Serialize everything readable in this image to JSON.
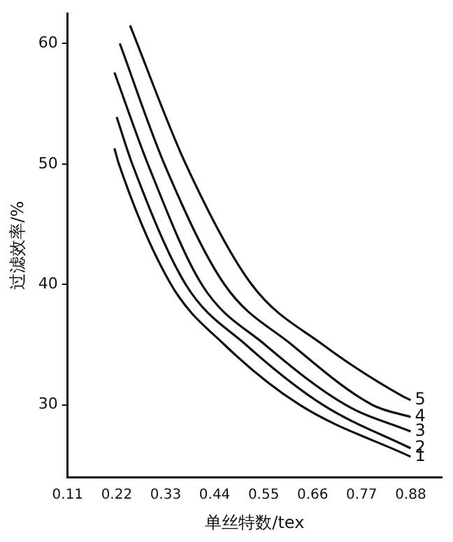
{
  "chart_data": {
    "type": "line",
    "xlabel": "单丝特数/tex",
    "ylabel": "过滤效率/%",
    "xlim": [
      0.11,
      0.95
    ],
    "xticks": [
      0.11,
      0.22,
      0.33,
      0.44,
      0.55,
      0.66,
      0.77,
      0.88
    ],
    "ylim": [
      24,
      62.5
    ],
    "yticks": [
      30,
      40,
      50,
      60
    ],
    "grid": false,
    "legend": false,
    "marker": "none",
    "line_style": "solid",
    "series": [
      {
        "name": "1",
        "color": "#111111",
        "x": [
          0.215,
          0.225,
          0.342,
          0.462,
          0.631,
          0.88
        ],
        "values": [
          51.3,
          50,
          40,
          35,
          30,
          25.7
        ]
      },
      {
        "name": "2",
        "color": "#111111",
        "x": [
          0.22,
          0.255,
          0.375,
          0.51,
          0.683,
          0.88
        ],
        "values": [
          53.9,
          50,
          40,
          35,
          30,
          26.4
        ]
      },
      {
        "name": "3",
        "color": "#111111",
        "x": [
          0.215,
          0.29,
          0.411,
          0.553,
          0.734,
          0.88
        ],
        "values": [
          57.6,
          50,
          40,
          35,
          30,
          27.8
        ]
      },
      {
        "name": "4",
        "color": "#111111",
        "x": [
          0.227,
          0.327,
          0.462,
          0.613,
          0.794,
          0.88
        ],
        "values": [
          60,
          50,
          40,
          35,
          30,
          29
        ]
      },
      {
        "name": "5",
        "color": "#111111",
        "x": [
          0.25,
          0.375,
          0.523,
          0.683,
          0.863,
          0.88
        ],
        "values": [
          61.5,
          50,
          40,
          35,
          30.7,
          30.4
        ]
      }
    ]
  }
}
